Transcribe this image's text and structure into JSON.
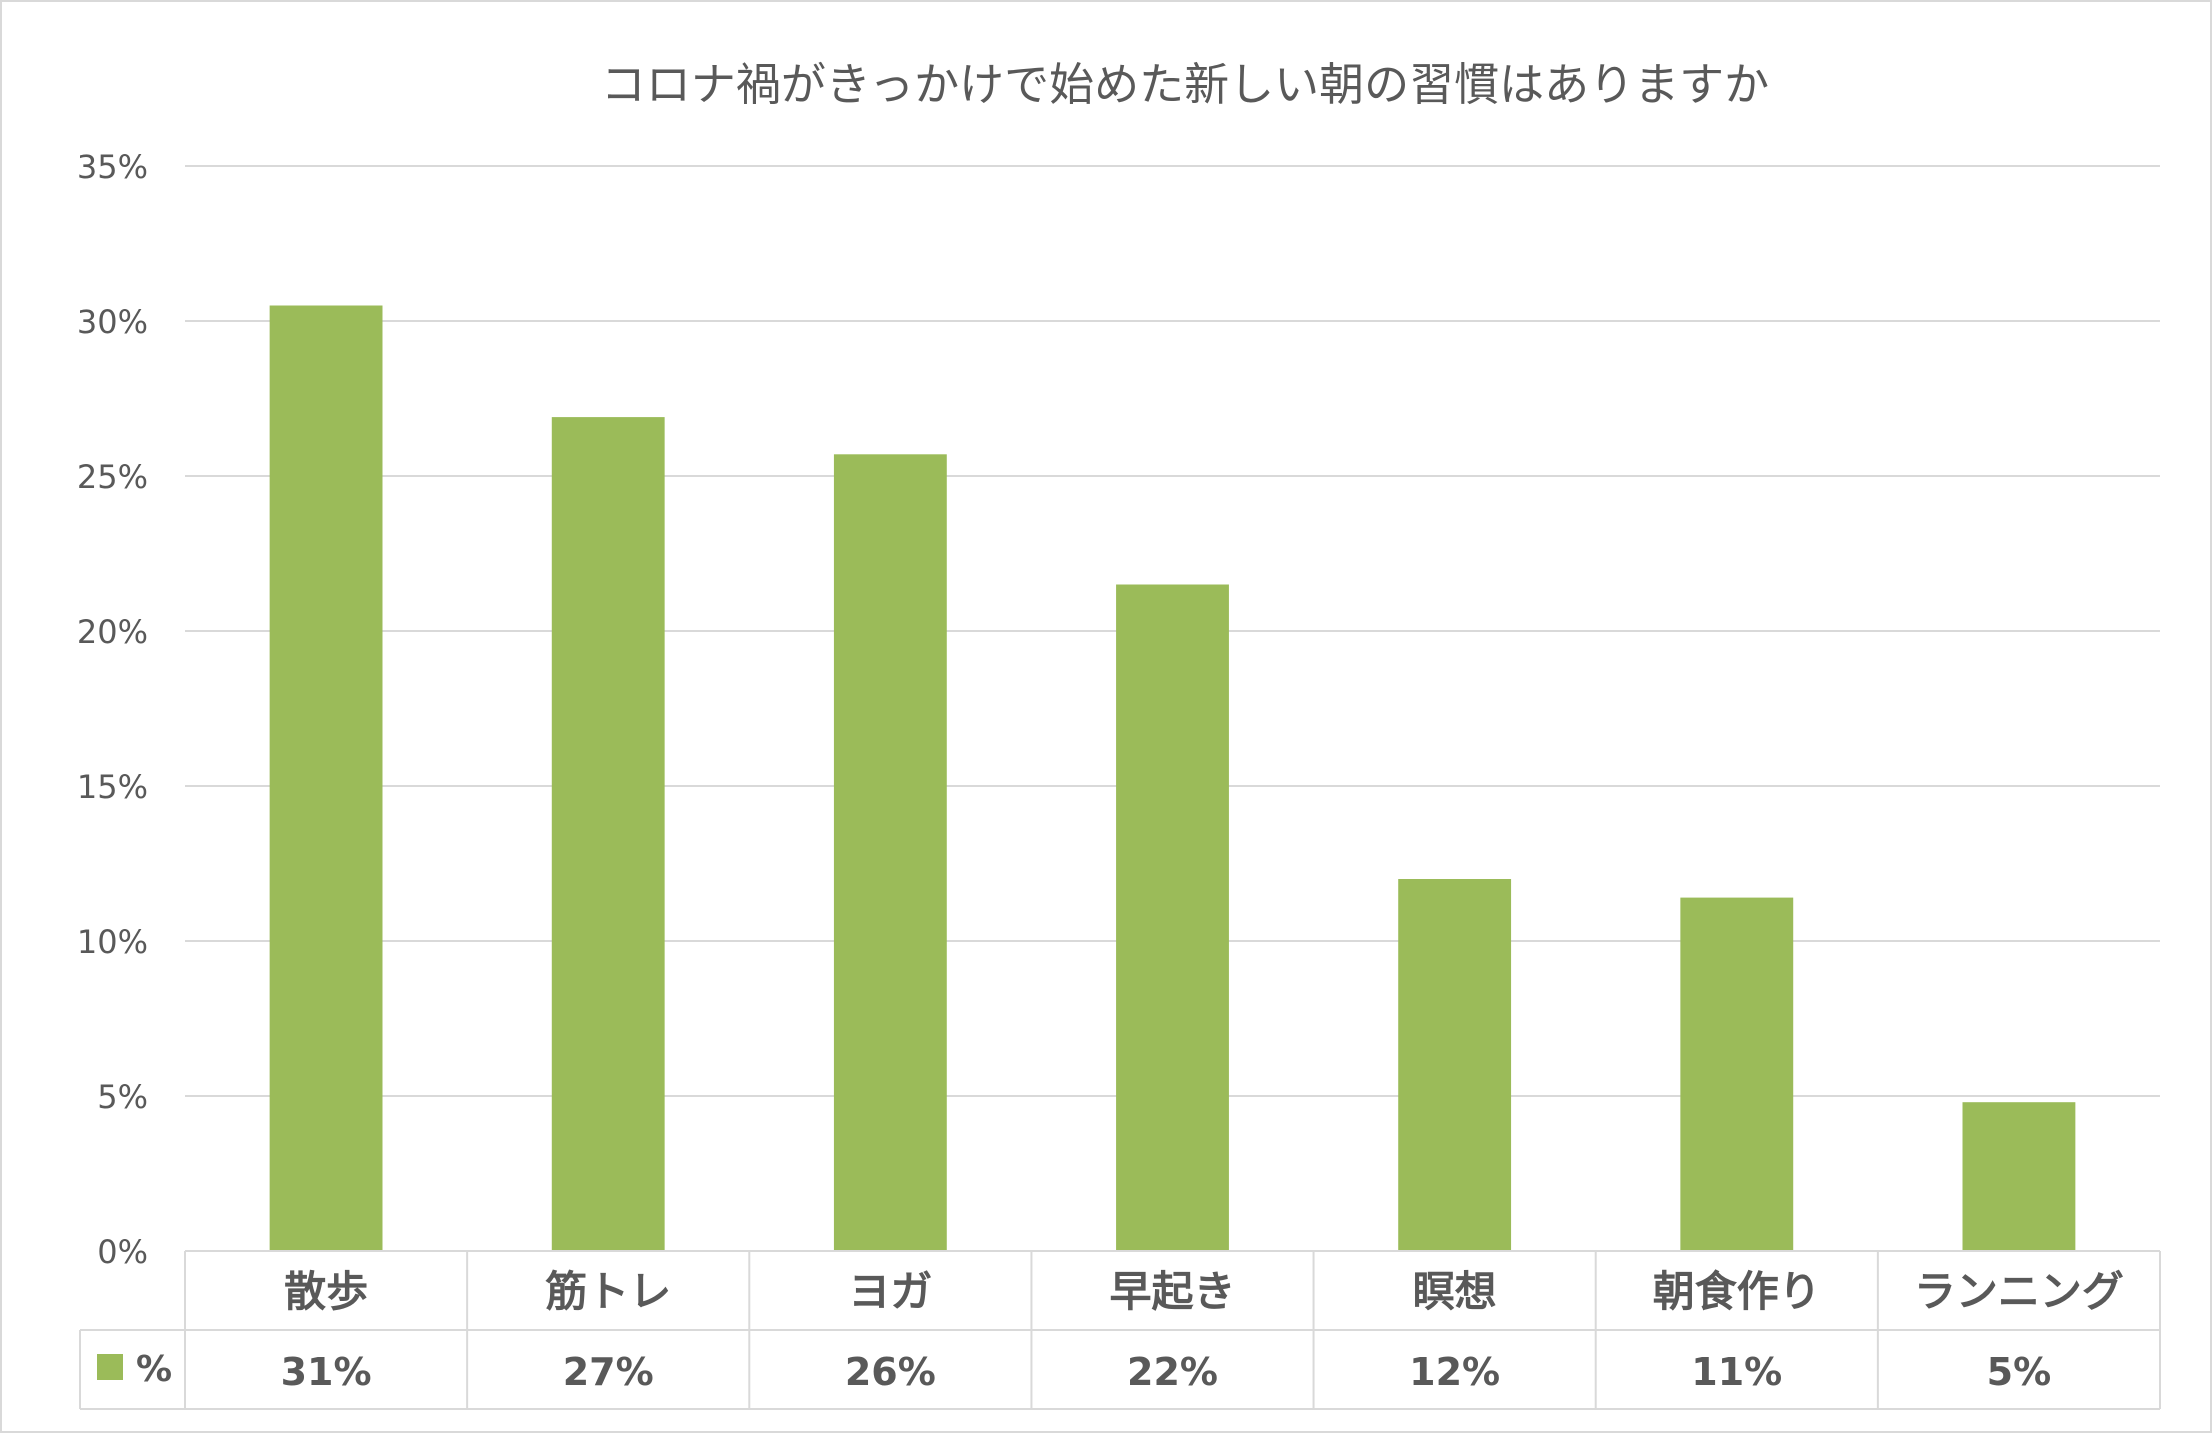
{
  "chart_data": {
    "type": "bar",
    "title": "コロナ禍がきっかけで始めた新しい朝の習慣はありますか",
    "xlabel": "",
    "ylabel": "",
    "ylim": [
      0,
      35
    ],
    "ytick_values": [
      0,
      5,
      10,
      15,
      20,
      25,
      30,
      35
    ],
    "ytick_labels": [
      "0%",
      "5%",
      "10%",
      "15%",
      "20%",
      "25%",
      "30%",
      "35%"
    ],
    "grid": true,
    "legend": "data-table",
    "categories": [
      "散歩",
      "筋トレ",
      "ヨガ",
      "早起き",
      "瞑想",
      "朝食作り",
      "ランニング"
    ],
    "series": [
      {
        "name": "%",
        "color": "#9BBB59",
        "values": [
          30.5,
          26.9,
          25.7,
          21.5,
          12.0,
          11.4,
          4.8
        ],
        "value_labels": [
          "31%",
          "27%",
          "26%",
          "22%",
          "12%",
          "11%",
          "5%"
        ]
      }
    ]
  }
}
